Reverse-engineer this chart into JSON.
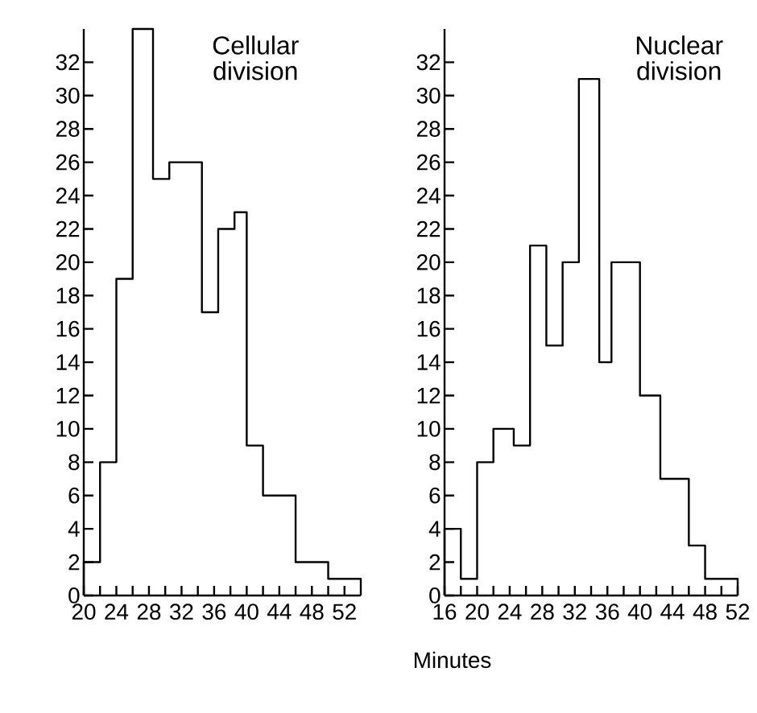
{
  "chart_data": [
    {
      "type": "histogram",
      "title": "Cellular division",
      "xlabel": "Minutes",
      "bins": [
        20,
        22,
        24,
        26,
        28.5,
        30.5,
        34.5,
        36.5,
        38.5,
        40,
        42,
        46,
        50,
        54
      ],
      "values": [
        2,
        8,
        19,
        34,
        25,
        26,
        17,
        22,
        23,
        9,
        6,
        2,
        1
      ],
      "color": "#000000",
      "xlim": [
        20,
        54
      ],
      "ylim": [
        0,
        34
      ],
      "xticks": [
        20,
        {
          "value": 22,
          "label": null
        },
        {
          "value": 24,
          "label": "24"
        },
        {
          "value": 26,
          "label": null
        },
        28,
        {
          "value": 30,
          "label": null
        },
        {
          "value": 32,
          "label": "32"
        },
        {
          "value": 34,
          "label": null
        },
        36,
        {
          "value": 38,
          "label": null
        },
        {
          "value": 40,
          "label": "40"
        },
        {
          "value": 42,
          "label": null
        },
        44,
        {
          "value": 46,
          "label": null
        },
        {
          "value": 48,
          "label": "48"
        },
        {
          "value": 50,
          "label": null
        },
        52
      ],
      "yticks": [
        0,
        2,
        4,
        6,
        8,
        10,
        12,
        14,
        16,
        18,
        20,
        22,
        24,
        26,
        28,
        30,
        32
      ],
      "grid": false
    },
    {
      "type": "histogram",
      "title": "Nuclear division",
      "bins": [
        16,
        18,
        20,
        22,
        24.5,
        26.5,
        28.5,
        30.5,
        32.5,
        35,
        36.5,
        40,
        42.5,
        46,
        48,
        52
      ],
      "values": [
        4,
        1,
        8,
        10,
        9,
        21,
        15,
        20,
        31,
        14,
        20,
        12,
        7,
        3,
        1
      ],
      "color": "#000000",
      "xlim": [
        16,
        52
      ],
      "ylim": [
        0,
        34
      ],
      "xticks": [
        16,
        {
          "value": 18,
          "label": null
        },
        {
          "value": 20,
          "label": "20"
        },
        {
          "value": 22,
          "label": null
        },
        24,
        {
          "value": 26,
          "label": null
        },
        {
          "value": 28,
          "label": "28"
        },
        {
          "value": 30,
          "label": null
        },
        32,
        {
          "value": 34,
          "label": null
        },
        {
          "value": 36,
          "label": "36"
        },
        {
          "value": 38,
          "label": null
        },
        40,
        {
          "value": 42,
          "label": null
        },
        {
          "value": 44,
          "label": "44"
        },
        {
          "value": 46,
          "label": null
        },
        48,
        {
          "value": 50,
          "label": null
        },
        {
          "value": 52,
          "label": "52"
        }
      ],
      "yticks": [
        0,
        2,
        4,
        6,
        8,
        10,
        12,
        14,
        16,
        18,
        20,
        22,
        24,
        26,
        28,
        30,
        32
      ],
      "grid": false
    }
  ]
}
